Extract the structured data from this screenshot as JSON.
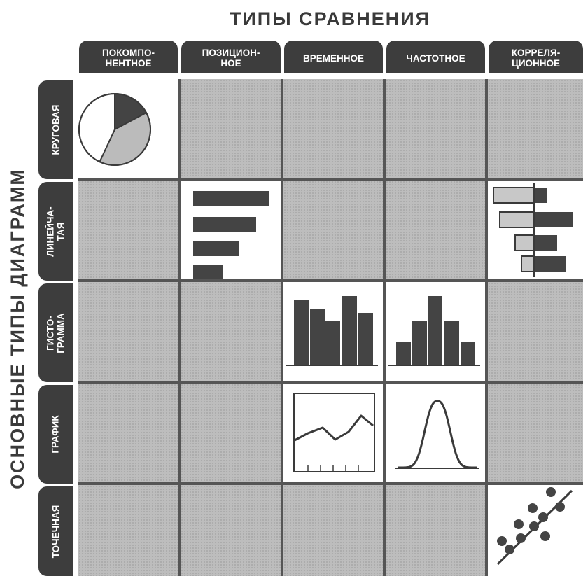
{
  "header": {
    "title": "ТИПЫ СРАВНЕНИЯ"
  },
  "side": {
    "title": "ОСНОВНЫЕ ТИПЫ ДИАГРАММ"
  },
  "columns": [
    {
      "label": "ПОКОМПО-\nНЕНТНОЕ"
    },
    {
      "label": "ПОЗИЦИОН-\nНОЕ"
    },
    {
      "label": "ВРЕМЕННОЕ"
    },
    {
      "label": "ЧАСТОТНОЕ"
    },
    {
      "label": "КОРРЕЛЯ-\nЦИОННОЕ"
    }
  ],
  "rows": [
    {
      "label": "КРУГОВАЯ"
    },
    {
      "label": "ЛИНЕЙЧА-\nТАЯ"
    },
    {
      "label": "ГИСТО-\nГРАММА"
    },
    {
      "label": "ГРАФИК"
    },
    {
      "label": "ТОЧЕЧНАЯ"
    }
  ],
  "cells": [
    {
      "row": 0,
      "col": 0,
      "icon": "pie-chart-icon"
    },
    {
      "row": 1,
      "col": 1,
      "icon": "horizontal-bar-chart-icon"
    },
    {
      "row": 1,
      "col": 4,
      "icon": "paired-bar-chart-icon"
    },
    {
      "row": 2,
      "col": 2,
      "icon": "time-histogram-icon"
    },
    {
      "row": 2,
      "col": 3,
      "icon": "frequency-histogram-icon"
    },
    {
      "row": 3,
      "col": 2,
      "icon": "line-chart-icon"
    },
    {
      "row": 3,
      "col": 3,
      "icon": "bell-curve-icon"
    },
    {
      "row": 4,
      "col": 4,
      "icon": "scatter-plot-icon"
    }
  ],
  "colors": {
    "tab_background": "#3d3d3d",
    "tab_text": "#ffffff",
    "inactive_cell": "#bdbdbd",
    "active_cell": "#ffffff",
    "ink": "#3a3a3a"
  }
}
